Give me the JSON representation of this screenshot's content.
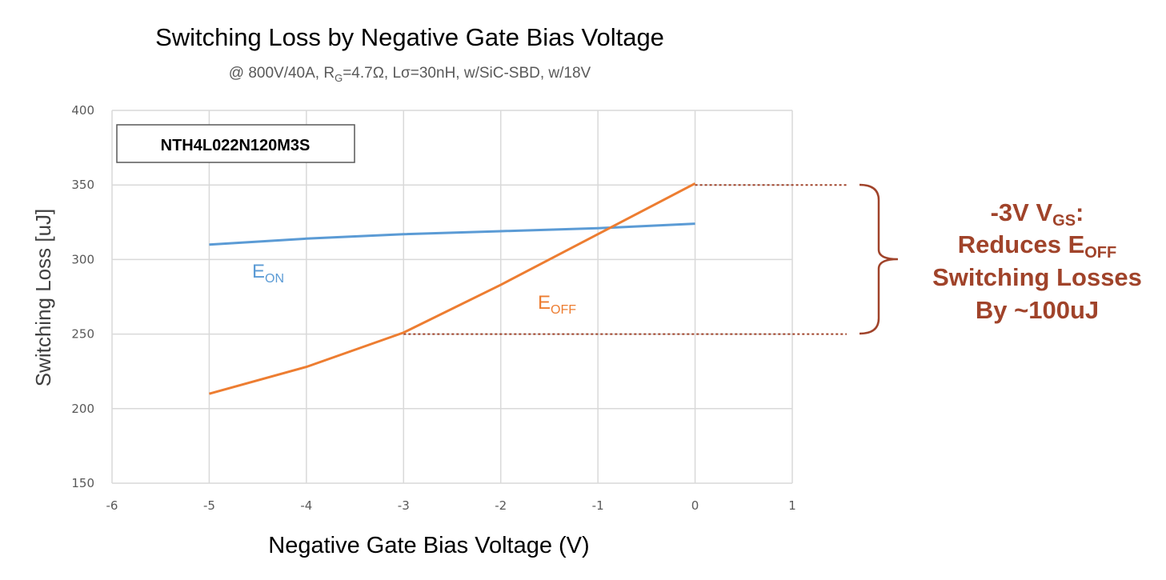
{
  "chart_data": {
    "type": "line",
    "title": "Switching Loss by Negative Gate Bias Voltage",
    "subtitle": {
      "prefix": "@ 800V/40A, R",
      "sub": "G",
      "suffix": "=4.7Ω, Lσ=30nH, w/SiC-SBD, w/18V"
    },
    "xlabel": "Negative Gate Bias Voltage (V)",
    "ylabel": "Switching Loss [uJ]",
    "xlim": [
      -6,
      1
    ],
    "ylim": [
      150,
      400
    ],
    "xticks": [
      -6,
      -5,
      -4,
      -3,
      -2,
      -1,
      0,
      1
    ],
    "yticks": [
      150,
      200,
      250,
      300,
      350,
      400
    ],
    "grid": true,
    "device_label": "NTH4L022N120M3S",
    "series": [
      {
        "name": "E_ON",
        "label_main": "E",
        "label_sub": "ON",
        "color": "#5b9bd5",
        "x": [
          -5,
          -4,
          -3,
          -2,
          -1,
          0
        ],
        "values": [
          310,
          314,
          317,
          319,
          321,
          324
        ]
      },
      {
        "name": "E_OFF",
        "label_main": "E",
        "label_sub": "OFF",
        "color": "#ed7d31",
        "x": [
          -5,
          -4,
          -3,
          -2,
          -1,
          0
        ],
        "values": [
          210,
          228,
          251,
          283,
          317,
          351
        ]
      }
    ],
    "annotation": {
      "color": "#a0432a",
      "ref_levels": [
        350,
        250
      ],
      "line1_main": "-3V V",
      "line1_sub": "GS",
      "line1_end": ":",
      "line2_main": "Reduces E",
      "line2_sub": "OFF",
      "line3": "Switching Losses",
      "line4": "By ~100uJ"
    }
  }
}
